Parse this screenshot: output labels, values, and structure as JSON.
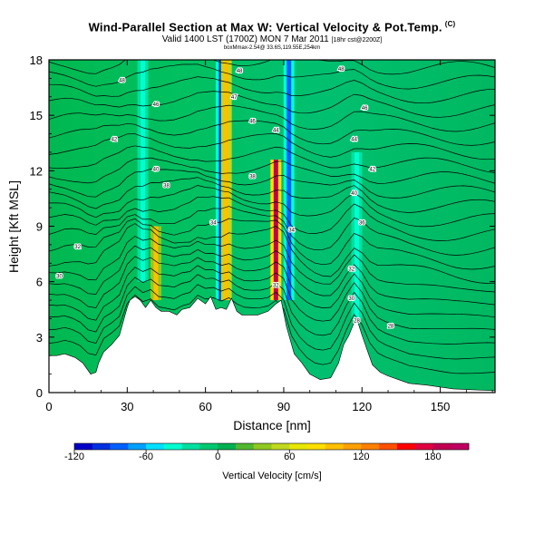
{
  "header": {
    "title": "Wind-Parallel Section at Max W: Vertical Velocity & Pot.Temp.",
    "title_mark": "(C)",
    "valid_line": "Valid 1400 LST (1700Z) MON 7 Mar 2011",
    "valid_line_suffix": "[18hr cst@2200Z]",
    "info_line": "boxMmax-2.54@ 33.6S,119.55E,254km"
  },
  "chart_data": {
    "type": "heatmap",
    "title": "Wind-Parallel Section at Max W: Vertical Velocity & Pot.Temp.",
    "xlabel": "Distance [nm]",
    "ylabel": "Height [Kft MSL]",
    "xlim": [
      0,
      171
    ],
    "ylim": [
      0,
      18
    ],
    "xticks": [
      "0",
      "30",
      "60",
      "90",
      "120",
      "150"
    ],
    "yticks": [
      "0",
      "3",
      "6",
      "9",
      "12",
      "15",
      "18"
    ],
    "terrain_kft": [
      [
        0,
        2.0
      ],
      [
        3,
        2.0
      ],
      [
        6,
        2.1
      ],
      [
        10,
        1.9
      ],
      [
        13,
        1.6
      ],
      [
        16,
        1.0
      ],
      [
        18,
        1.1
      ],
      [
        19,
        1.6
      ],
      [
        21,
        2.2
      ],
      [
        24,
        2.6
      ],
      [
        27,
        3.1
      ],
      [
        30,
        4.6
      ],
      [
        31,
        5.0
      ],
      [
        33,
        5.2
      ],
      [
        35,
        5.0
      ],
      [
        37,
        4.6
      ],
      [
        39,
        5.0
      ],
      [
        41,
        4.6
      ],
      [
        43,
        4.4
      ],
      [
        46,
        4.4
      ],
      [
        49,
        4.2
      ],
      [
        51,
        4.5
      ],
      [
        54,
        4.6
      ],
      [
        57,
        5.1
      ],
      [
        60,
        4.8
      ],
      [
        62,
        5.2
      ],
      [
        64,
        4.5
      ],
      [
        66,
        4.6
      ],
      [
        68,
        4.5
      ],
      [
        70,
        5.1
      ],
      [
        72,
        4.4
      ],
      [
        74,
        4.2
      ],
      [
        77,
        4.2
      ],
      [
        80,
        4.2
      ],
      [
        84,
        4.4
      ],
      [
        87,
        4.8
      ],
      [
        89,
        5.0
      ],
      [
        91,
        3.6
      ],
      [
        94,
        2.1
      ],
      [
        97,
        1.6
      ],
      [
        100,
        1.0
      ],
      [
        104,
        0.7
      ],
      [
        108,
        0.8
      ],
      [
        111,
        1.6
      ],
      [
        113,
        2.6
      ],
      [
        115,
        3.1
      ],
      [
        117,
        3.8
      ],
      [
        118,
        4.0
      ],
      [
        120,
        3.1
      ],
      [
        122,
        2.3
      ],
      [
        124,
        1.5
      ],
      [
        127,
        1.1
      ],
      [
        130,
        0.9
      ],
      [
        134,
        0.7
      ],
      [
        138,
        0.5
      ],
      [
        145,
        0.4
      ],
      [
        155,
        0.2
      ],
      [
        171,
        0.1
      ]
    ],
    "vertical_velocity_features": [
      {
        "x": 41,
        "y_range": [
          5,
          9
        ],
        "value": 90
      },
      {
        "x": 66,
        "y_range": [
          5,
          18
        ],
        "value": -100
      },
      {
        "x": 68,
        "y_range": [
          5,
          18
        ],
        "value": 100
      },
      {
        "x": 87,
        "y_range": [
          5,
          12.6
        ],
        "value": 180
      },
      {
        "x": 92,
        "y_range": [
          5,
          18
        ],
        "value": -80
      },
      {
        "x": 118,
        "y_range": [
          4,
          13
        ],
        "value": -40
      },
      {
        "x": 36,
        "y_range": [
          6,
          18
        ],
        "value": -40
      }
    ],
    "theta_contour_labels": [
      {
        "x": 28,
        "y": 16.9,
        "text": "48"
      },
      {
        "x": 41,
        "y": 15.6,
        "text": "46"
      },
      {
        "x": 73,
        "y": 17.4,
        "text": "48"
      },
      {
        "x": 71,
        "y": 16.0,
        "text": "47"
      },
      {
        "x": 78,
        "y": 14.7,
        "text": "46"
      },
      {
        "x": 87,
        "y": 14.2,
        "text": "44"
      },
      {
        "x": 112,
        "y": 17.5,
        "text": "48"
      },
      {
        "x": 121,
        "y": 15.4,
        "text": "46"
      },
      {
        "x": 117,
        "y": 13.7,
        "text": "44"
      },
      {
        "x": 124,
        "y": 12.1,
        "text": "42"
      },
      {
        "x": 25,
        "y": 13.7,
        "text": "42"
      },
      {
        "x": 41,
        "y": 12.1,
        "text": "40"
      },
      {
        "x": 45,
        "y": 11.2,
        "text": "38"
      },
      {
        "x": 78,
        "y": 11.7,
        "text": "38"
      },
      {
        "x": 63,
        "y": 9.2,
        "text": "34"
      },
      {
        "x": 93,
        "y": 8.8,
        "text": "34"
      },
      {
        "x": 117,
        "y": 10.8,
        "text": "40"
      },
      {
        "x": 120,
        "y": 9.2,
        "text": "36"
      },
      {
        "x": 11,
        "y": 7.9,
        "text": "32"
      },
      {
        "x": 4,
        "y": 6.3,
        "text": "30"
      },
      {
        "x": 116,
        "y": 6.7,
        "text": "32"
      },
      {
        "x": 87,
        "y": 5.8,
        "text": "32"
      },
      {
        "x": 116,
        "y": 5.1,
        "text": "30"
      },
      {
        "x": 118,
        "y": 3.9,
        "text": "28"
      },
      {
        "x": 131,
        "y": 3.6,
        "text": "28"
      }
    ],
    "colorbar": {
      "label": "Vertical Velocity [cm/s]",
      "min": -120,
      "max": 210,
      "step": 15,
      "tick_labels": [
        "-120",
        "-60",
        "0",
        "60",
        "120",
        "180"
      ],
      "tick_values": [
        -120,
        -60,
        0,
        60,
        120,
        180
      ],
      "colors": [
        "#0000c8",
        "#0030e0",
        "#0060ff",
        "#00a0ff",
        "#00e0ff",
        "#00ffd0",
        "#00e0a0",
        "#00c870",
        "#00b050",
        "#50b830",
        "#90c820",
        "#c0d820",
        "#e8e800",
        "#ffe000",
        "#ffc000",
        "#ffa000",
        "#ff8000",
        "#ff5000",
        "#ff0000",
        "#e00040",
        "#c00050",
        "#c00060"
      ]
    }
  }
}
